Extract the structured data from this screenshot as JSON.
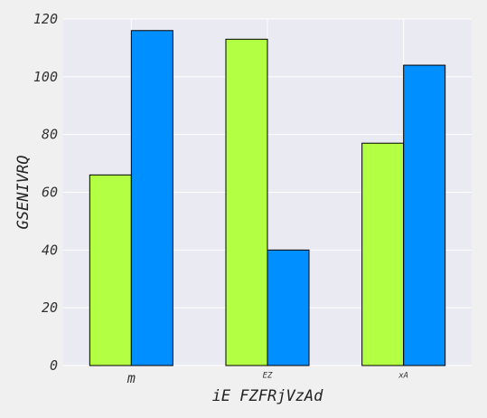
{
  "chart_data": {
    "type": "bar",
    "title": "",
    "xlabel": "iE FZFRjVzAd",
    "ylabel": "GSENIVRQ",
    "categories": [
      "m",
      "EZ",
      "xA"
    ],
    "series": [
      {
        "values": [
          66,
          113,
          77
        ],
        "color": "#b3ff44"
      },
      {
        "values": [
          116,
          40,
          104
        ],
        "color": "#008ffe"
      }
    ],
    "ylim": [
      0,
      120
    ],
    "yticks": [
      0,
      20,
      40,
      60,
      80,
      100,
      120
    ],
    "grid": true,
    "legend": "none",
    "plot_background": "#eaeaf2",
    "page_background": "#f0f0f0"
  }
}
